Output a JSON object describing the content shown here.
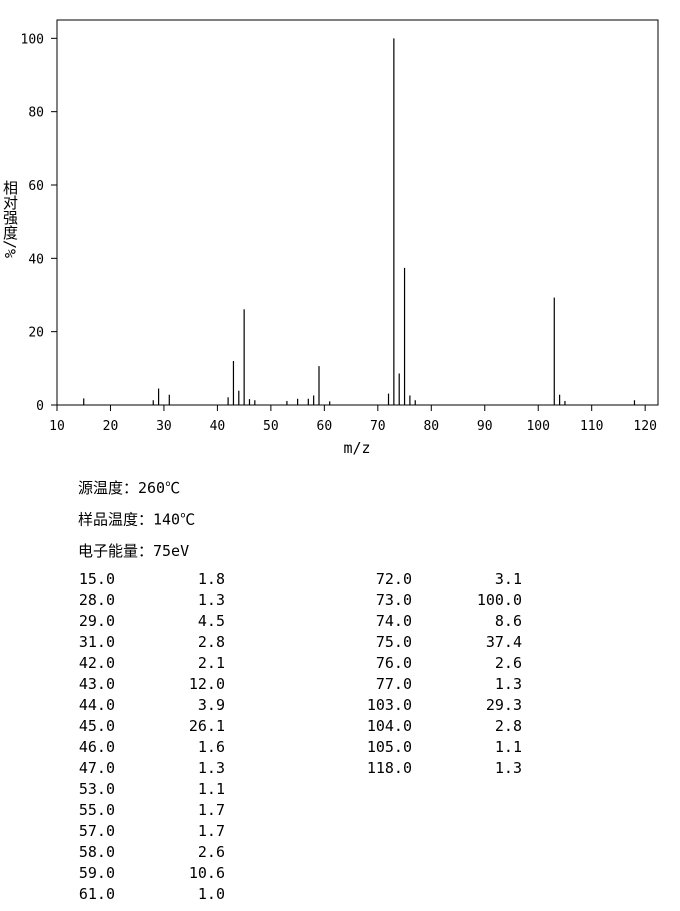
{
  "chart_data": {
    "type": "spectrum",
    "xlabel": "m/z",
    "ylabel": "相对强度/%",
    "xlim": [
      10,
      122.4
    ],
    "xticks": [
      10,
      20,
      30,
      40,
      50,
      60,
      70,
      80,
      90,
      100,
      110,
      120
    ],
    "ylim": [
      0,
      105
    ],
    "yticks": [
      0,
      20,
      40,
      60,
      80,
      100
    ],
    "color": "#000000",
    "x": [
      15,
      28,
      29,
      31,
      42,
      43,
      44,
      45,
      46,
      47,
      53,
      55,
      57,
      58,
      59,
      61,
      72,
      73,
      74,
      75,
      76,
      77,
      103,
      104,
      105,
      118
    ],
    "x_labels": [
      "15.0",
      "28.0",
      "29.0",
      "31.0",
      "42.0",
      "43.0",
      "44.0",
      "45.0",
      "46.0",
      "47.0",
      "53.0",
      "55.0",
      "57.0",
      "58.0",
      "59.0",
      "61.0",
      "72.0",
      "73.0",
      "74.0",
      "75.0",
      "76.0",
      "77.0",
      "103.0",
      "104.0",
      "105.0",
      "118.0"
    ],
    "values": [
      1.8,
      1.3,
      4.5,
      2.8,
      2.1,
      12,
      3.9,
      26.1,
      1.6,
      1.3,
      1.1,
      1.7,
      1.7,
      2.6,
      10.6,
      1.0,
      3.1,
      100,
      8.6,
      37.4,
      2.6,
      1.3,
      29.3,
      2.8,
      1.1,
      1.3
    ],
    "value_labels": [
      "1.8",
      "1.3",
      "4.5",
      "2.8",
      "2.1",
      "12.0",
      "3.9",
      "26.1",
      "1.6",
      "1.3",
      "1.1",
      "1.7",
      "1.7",
      "2.6",
      "10.6",
      "1.0",
      "3.1",
      "100.0",
      "8.6",
      "37.4",
      "2.6",
      "1.3",
      "29.3",
      "2.8",
      "1.1",
      "1.3"
    ]
  },
  "info": [
    "源温度：260℃",
    "样品温度：140℃",
    "电子能量：75eV"
  ]
}
